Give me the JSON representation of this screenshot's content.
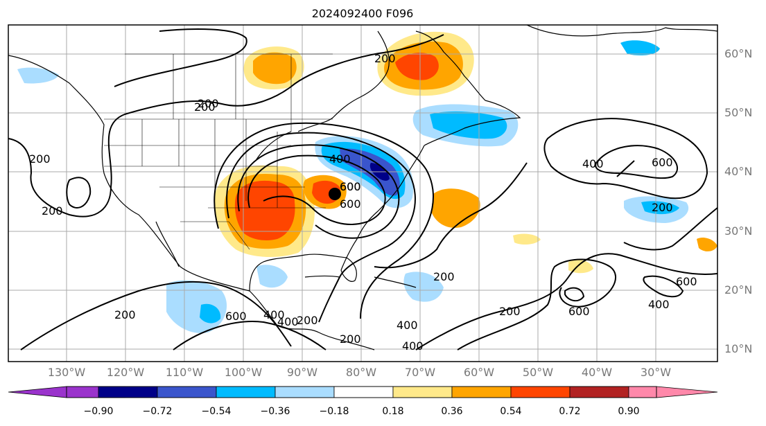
{
  "title": "2024092400 F096",
  "lon_labels": [
    "130°W",
    "120°W",
    "110°W",
    "100°W",
    "90°W",
    "80°W",
    "70°W",
    "60°W",
    "50°W",
    "40°W",
    "30°W"
  ],
  "lat_labels": [
    "60°N",
    "50°N",
    "40°N",
    "30°N",
    "20°N",
    "10°N"
  ],
  "contour_labels": [
    "200",
    "200",
    "200",
    "200",
    "400",
    "600",
    "600",
    "600",
    "400",
    "200",
    "400",
    "200",
    "600",
    "200",
    "400",
    "400",
    "200",
    "600",
    "200",
    "600",
    "400",
    "200",
    "400",
    "600",
    "200"
  ],
  "colorbar": {
    "ticks": [
      "−0.90",
      "−0.72",
      "−0.54",
      "−0.36",
      "−0.18",
      "0.18",
      "0.36",
      "0.54",
      "0.72",
      "0.90"
    ],
    "colors": [
      "#9a33cc",
      "#000088",
      "#3a55cc",
      "#00bbff",
      "#aaddff",
      "#ffffff",
      "#ffe98a",
      "#ffa500",
      "#ff4500",
      "#b22222",
      "#ff88aa"
    ]
  },
  "palette": {
    "pos_light": "#ffe98a",
    "pos_mid": "#ffa500",
    "pos_strong": "#ff4500",
    "neg_light": "#aaddff",
    "neg_mid": "#00bbff",
    "neg_strong": "#3a55cc",
    "neg_max": "#000088"
  }
}
